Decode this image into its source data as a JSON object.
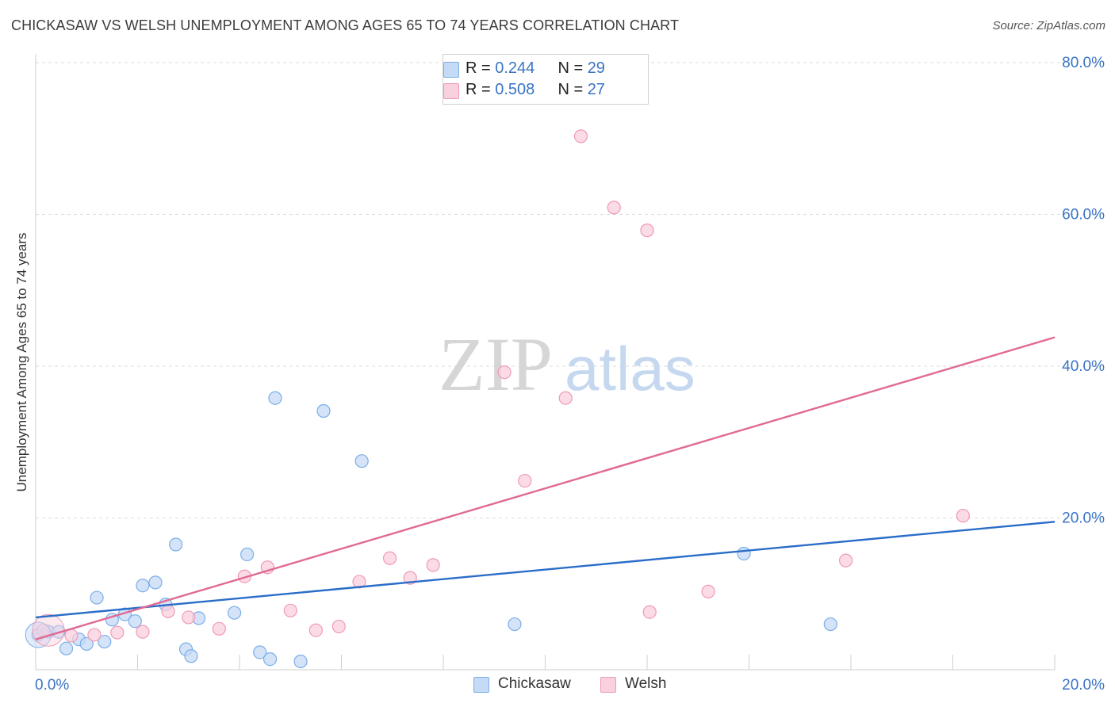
{
  "title": "CHICKASAW VS WELSH UNEMPLOYMENT AMONG AGES 65 TO 74 YEARS CORRELATION CHART",
  "source": "Source: ZipAtlas.com",
  "watermark": {
    "zip": "ZIP",
    "atlas": "atlas"
  },
  "legend": {
    "rows": [
      {
        "r_label": "R = ",
        "r_value": "0.244",
        "n_label": "N = ",
        "n_value": "29"
      },
      {
        "r_label": "R = ",
        "r_value": "0.508",
        "n_label": "N = ",
        "n_value": "27"
      }
    ]
  },
  "chart_data": {
    "type": "scatter",
    "title": "CHICKASAW VS WELSH UNEMPLOYMENT AMONG AGES 65 TO 74 YEARS CORRELATION CHART",
    "xlabel": "",
    "ylabel": "Unemployment Among Ages 65 to 74 years",
    "xlim": [
      0,
      20
    ],
    "ylim": [
      0,
      80
    ],
    "x_tick_labels": [
      "0.0%",
      "20.0%"
    ],
    "y_ticks": [
      20,
      40,
      60,
      80
    ],
    "y_tick_labels": [
      "20.0%",
      "40.0%",
      "60.0%",
      "80.0%"
    ],
    "grid": true,
    "series": [
      {
        "name": "Chickasaw",
        "color": "#7aaee8",
        "fill": "#c5daf5",
        "trend_color": "#2a6dc9",
        "trend": {
          "x": [
            0,
            20
          ],
          "y": [
            6.9,
            19.5
          ]
        },
        "points": [
          {
            "x": 0.05,
            "y": 4.6
          },
          {
            "x": 0.25,
            "y": 5.0
          },
          {
            "x": 0.45,
            "y": 5.0
          },
          {
            "x": 0.6,
            "y": 2.8
          },
          {
            "x": 0.85,
            "y": 4.0
          },
          {
            "x": 1.0,
            "y": 3.4
          },
          {
            "x": 1.2,
            "y": 9.5
          },
          {
            "x": 1.35,
            "y": 3.7
          },
          {
            "x": 1.5,
            "y": 6.6
          },
          {
            "x": 1.75,
            "y": 7.3
          },
          {
            "x": 1.95,
            "y": 6.4
          },
          {
            "x": 2.1,
            "y": 11.1
          },
          {
            "x": 2.35,
            "y": 11.5
          },
          {
            "x": 2.55,
            "y": 8.6
          },
          {
            "x": 2.75,
            "y": 16.5
          },
          {
            "x": 2.95,
            "y": 2.7
          },
          {
            "x": 3.05,
            "y": 1.8
          },
          {
            "x": 3.2,
            "y": 6.8
          },
          {
            "x": 3.9,
            "y": 7.5
          },
          {
            "x": 4.15,
            "y": 15.2
          },
          {
            "x": 4.4,
            "y": 2.3
          },
          {
            "x": 4.6,
            "y": 1.4
          },
          {
            "x": 4.7,
            "y": 35.8
          },
          {
            "x": 5.2,
            "y": 1.1
          },
          {
            "x": 5.65,
            "y": 34.1
          },
          {
            "x": 6.4,
            "y": 27.5
          },
          {
            "x": 9.4,
            "y": 6.0
          },
          {
            "x": 13.9,
            "y": 15.3
          },
          {
            "x": 15.6,
            "y": 6.0
          }
        ]
      },
      {
        "name": "Welsh",
        "color": "#f09ab5",
        "fill": "#f9d0dd",
        "trend_color": "#e06a94",
        "trend": {
          "x": [
            0,
            20
          ],
          "y": [
            4.0,
            43.8
          ]
        },
        "points": [
          {
            "x": 0.15,
            "y": 5.2
          },
          {
            "x": 0.7,
            "y": 4.5
          },
          {
            "x": 1.15,
            "y": 4.6
          },
          {
            "x": 1.6,
            "y": 4.9
          },
          {
            "x": 2.1,
            "y": 5.0
          },
          {
            "x": 2.6,
            "y": 7.7
          },
          {
            "x": 3.0,
            "y": 6.9
          },
          {
            "x": 3.6,
            "y": 5.4
          },
          {
            "x": 4.1,
            "y": 12.3
          },
          {
            "x": 4.55,
            "y": 13.5
          },
          {
            "x": 5.0,
            "y": 7.8
          },
          {
            "x": 5.5,
            "y": 5.2
          },
          {
            "x": 5.95,
            "y": 5.7
          },
          {
            "x": 6.35,
            "y": 11.6
          },
          {
            "x": 6.95,
            "y": 14.7
          },
          {
            "x": 7.35,
            "y": 12.1
          },
          {
            "x": 7.8,
            "y": 13.8
          },
          {
            "x": 9.2,
            "y": 39.2
          },
          {
            "x": 9.6,
            "y": 24.9
          },
          {
            "x": 10.4,
            "y": 35.8
          },
          {
            "x": 10.7,
            "y": 70.3
          },
          {
            "x": 11.35,
            "y": 60.9
          },
          {
            "x": 12.0,
            "y": 57.9
          },
          {
            "x": 12.05,
            "y": 7.6
          },
          {
            "x": 13.2,
            "y": 10.3
          },
          {
            "x": 15.9,
            "y": 14.4
          },
          {
            "x": 18.2,
            "y": 20.3
          }
        ]
      }
    ]
  }
}
